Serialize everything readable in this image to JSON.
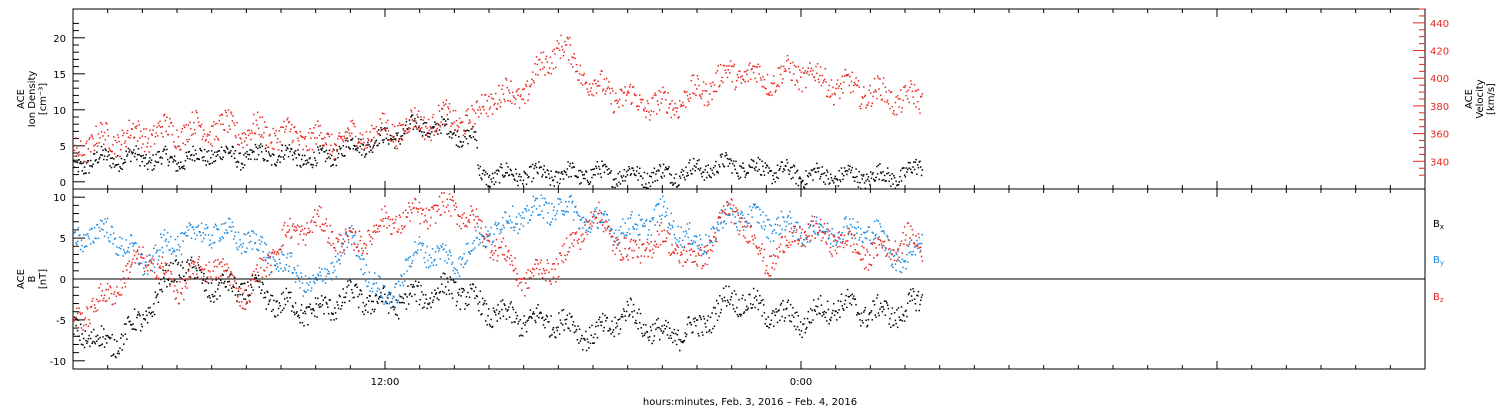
{
  "xlabel": "hours:minutes, Feb.  3, 2016 – Feb.  4, 2016",
  "x_ticklabels": [
    {
      "t": 12,
      "label": "12:00"
    },
    {
      "t": 24,
      "label": "0:00"
    }
  ],
  "x_range_hours": [
    3,
    42
  ],
  "chart_data": [
    {
      "type": "scatter",
      "panel": "top",
      "ylabel_left": [
        "ACE",
        "Ion Density",
        "[cm⁻³]"
      ],
      "ylabel_right": [
        "ACE",
        "Velocity",
        "[km/s]"
      ],
      "ylim_left": [
        -1,
        24
      ],
      "ylim_right": [
        320,
        450
      ],
      "yticks_left": [
        0,
        5,
        10,
        15,
        20
      ],
      "yticks_right": [
        340,
        360,
        380,
        400,
        420,
        440
      ],
      "series": [
        {
          "axis": "left",
          "color": "#000000",
          "anchors": [
            [
              3.0,
              2
            ],
            [
              3.5,
              3
            ],
            [
              4.5,
              3.5
            ],
            [
              6,
              3
            ],
            [
              7,
              4
            ],
            [
              8,
              3.5
            ],
            [
              9,
              4
            ],
            [
              10,
              3
            ],
            [
              11,
              5
            ],
            [
              12,
              6
            ],
            [
              13,
              8
            ],
            [
              14,
              7
            ],
            [
              14.6,
              6
            ],
            [
              14.7,
              1
            ],
            [
              16,
              1
            ],
            [
              18,
              1.2
            ],
            [
              20,
              1
            ],
            [
              22,
              2.5
            ],
            [
              24,
              1
            ],
            [
              26,
              0.8
            ],
            [
              27,
              1
            ],
            [
              27.5,
              2.5
            ]
          ]
        },
        {
          "axis": "right",
          "color": "#e8261e",
          "anchors": [
            [
              3.0,
              345
            ],
            [
              3.5,
              355
            ],
            [
              5,
              360
            ],
            [
              7,
              365
            ],
            [
              9,
              360
            ],
            [
              10.5,
              355
            ],
            [
              11.5,
              360
            ],
            [
              12,
              362
            ],
            [
              13,
              368
            ],
            [
              14,
              372
            ],
            [
              14.6,
              368
            ],
            [
              14.8,
              385
            ],
            [
              16,
              390
            ],
            [
              17,
              425
            ],
            [
              18,
              395
            ],
            [
              19,
              385
            ],
            [
              20,
              380
            ],
            [
              21,
              390
            ],
            [
              22,
              405
            ],
            [
              23,
              400
            ],
            [
              24,
              405
            ],
            [
              25,
              395
            ],
            [
              26,
              390
            ],
            [
              27,
              385
            ],
            [
              27.5,
              385
            ]
          ]
        }
      ]
    },
    {
      "type": "scatter",
      "panel": "bottom",
      "ylabel_left": [
        "ACE",
        "B",
        "[nT]"
      ],
      "ylim": [
        -11,
        11
      ],
      "yticks": [
        -10,
        -5,
        0,
        5,
        10
      ],
      "zero_line": true,
      "legend": [
        {
          "label": "B",
          "sub": "x",
          "color": "#000000"
        },
        {
          "label": "B",
          "sub": "y",
          "color": "#1a8ae0"
        },
        {
          "label": "B",
          "sub": "z",
          "color": "#e8261e"
        }
      ],
      "series": [
        {
          "name": "Bx",
          "color": "#000000",
          "anchors": [
            [
              3.0,
              -6
            ],
            [
              4,
              -8
            ],
            [
              5,
              -5
            ],
            [
              6,
              2
            ],
            [
              7,
              -1
            ],
            [
              8,
              -1
            ],
            [
              9,
              -3
            ],
            [
              10,
              -4
            ],
            [
              11,
              -2
            ],
            [
              12,
              -3
            ],
            [
              13,
              -2
            ],
            [
              14,
              -1
            ],
            [
              15,
              -4
            ],
            [
              16,
              -5
            ],
            [
              17,
              -5
            ],
            [
              18,
              -7
            ],
            [
              19,
              -4
            ],
            [
              20,
              -7
            ],
            [
              21,
              -6
            ],
            [
              22,
              -2
            ],
            [
              23,
              -4
            ],
            [
              24,
              -5
            ],
            [
              25,
              -3
            ],
            [
              26,
              -4
            ],
            [
              27,
              -4
            ],
            [
              27.5,
              -2
            ]
          ]
        },
        {
          "name": "By",
          "color": "#1a8ae0",
          "anchors": [
            [
              3.0,
              5
            ],
            [
              4,
              6
            ],
            [
              5,
              2
            ],
            [
              6,
              5
            ],
            [
              7,
              6
            ],
            [
              8,
              5
            ],
            [
              9,
              2
            ],
            [
              10,
              -1
            ],
            [
              11,
              5
            ],
            [
              12,
              -3
            ],
            [
              13,
              4
            ],
            [
              14,
              2
            ],
            [
              15,
              6
            ],
            [
              16,
              8
            ],
            [
              17,
              9
            ],
            [
              18,
              7
            ],
            [
              19,
              6
            ],
            [
              20,
              8
            ],
            [
              21,
              4
            ],
            [
              22,
              8
            ],
            [
              23,
              7
            ],
            [
              24,
              6
            ],
            [
              25,
              6
            ],
            [
              26,
              6
            ],
            [
              27,
              2
            ],
            [
              27.5,
              5
            ]
          ]
        },
        {
          "name": "Bz",
          "color": "#e8261e",
          "anchors": [
            [
              3.0,
              -5
            ],
            [
              4,
              -2
            ],
            [
              5,
              3
            ],
            [
              6,
              -1
            ],
            [
              7,
              2
            ],
            [
              8,
              -2
            ],
            [
              9,
              5
            ],
            [
              10,
              7
            ],
            [
              11,
              4
            ],
            [
              12,
              7
            ],
            [
              13,
              8
            ],
            [
              14,
              9
            ],
            [
              15,
              5
            ],
            [
              16,
              0
            ],
            [
              17,
              2
            ],
            [
              18,
              8
            ],
            [
              19,
              3
            ],
            [
              20,
              5
            ],
            [
              21,
              2
            ],
            [
              22,
              9
            ],
            [
              23,
              2
            ],
            [
              24,
              6
            ],
            [
              25,
              5
            ],
            [
              26,
              3
            ],
            [
              27,
              5
            ],
            [
              27.5,
              4
            ]
          ]
        }
      ]
    }
  ]
}
